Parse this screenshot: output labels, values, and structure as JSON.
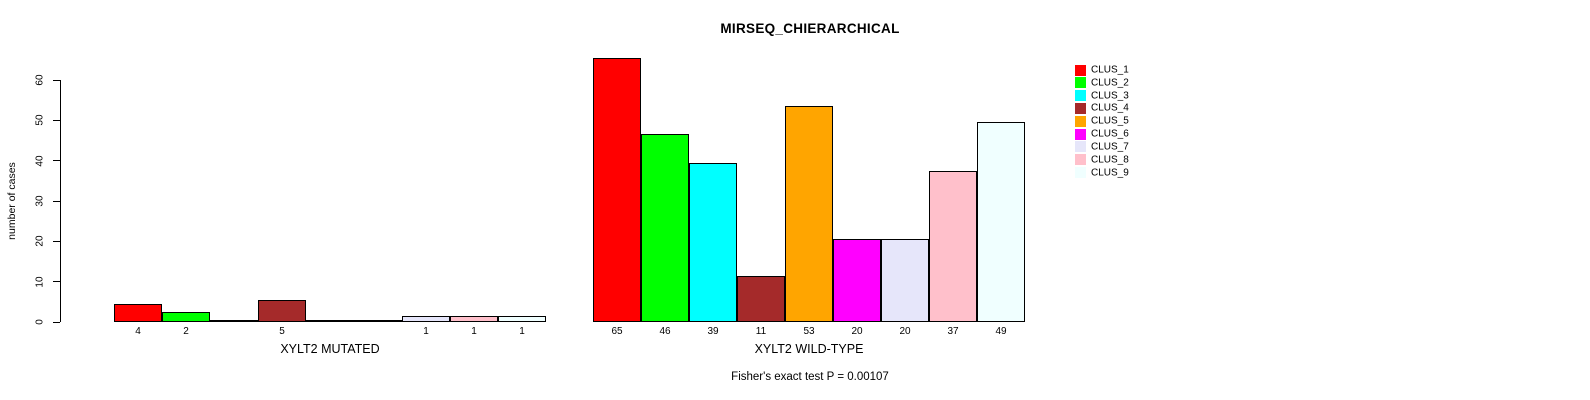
{
  "chart_data": {
    "type": "bar",
    "title": "MIRSEQ_CHIERARCHICAL",
    "ylabel": "number of cases",
    "ylim": [
      0,
      65
    ],
    "yticks": [
      0,
      10,
      20,
      30,
      40,
      50,
      60
    ],
    "grid": false,
    "legend_position": "top-right",
    "legend_entries": [
      "CLUS_1",
      "CLUS_2",
      "CLUS_3",
      "CLUS_4",
      "CLUS_5",
      "CLUS_6",
      "CLUS_7",
      "CLUS_8",
      "CLUS_9"
    ],
    "colors": [
      "#FF0000",
      "#00FF00",
      "#00FFFF",
      "#A52A2A",
      "#FFA500",
      "#FF00FF",
      "#E6E6FA",
      "#FFC0CB",
      "#F0FFFF"
    ],
    "bar_border_color": "#000000",
    "series": [
      {
        "name": "XYLT2 MUTATED",
        "values": [
          4,
          2,
          0,
          5,
          0,
          0,
          1,
          1,
          1
        ]
      },
      {
        "name": "XYLT2 WILD-TYPE",
        "values": [
          65,
          46,
          39,
          11,
          53,
          20,
          20,
          37,
          49
        ]
      }
    ],
    "footer": "Fisher's exact test P = 0.00107"
  }
}
